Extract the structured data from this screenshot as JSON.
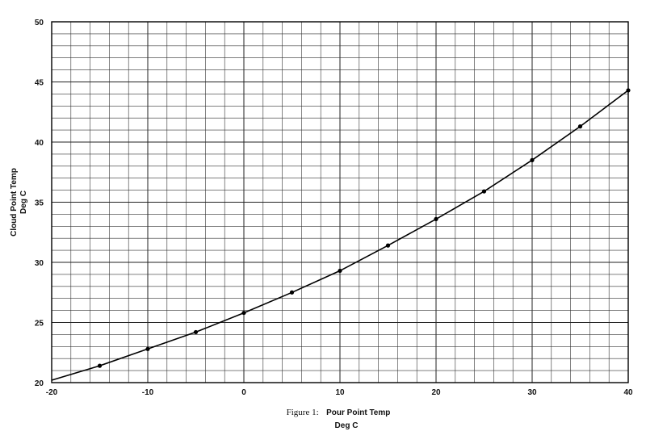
{
  "chart_data": {
    "type": "line",
    "title": "",
    "caption_prefix": "Figure 1:",
    "xlabel_line1": "Pour Point Temp",
    "xlabel_line2": "Deg C",
    "ylabel_line1": "Cloud Point Temp",
    "ylabel_line2": "Deg C",
    "xlim": [
      -20,
      40
    ],
    "ylim": [
      20,
      50
    ],
    "x_ticks": [
      -20,
      -10,
      0,
      10,
      20,
      30,
      40
    ],
    "y_ticks": [
      20,
      25,
      30,
      35,
      40,
      45,
      50
    ],
    "grid": true,
    "minor_grid_x_step": 2,
    "minor_grid_y_step": 1,
    "legend": "none",
    "series": [
      {
        "x": [
          -20,
          -15,
          -10,
          -5,
          0,
          5,
          10,
          15,
          20,
          25,
          30,
          35,
          40
        ],
        "y": [
          20.2,
          21.4,
          22.8,
          24.2,
          25.8,
          27.5,
          29.3,
          31.4,
          33.6,
          35.9,
          38.5,
          41.3,
          44.3
        ]
      }
    ],
    "markers": {
      "x": [
        -15,
        -10,
        -5,
        0,
        5,
        10,
        15,
        20,
        25,
        30,
        35,
        40
      ],
      "y": [
        21.4,
        22.8,
        24.2,
        25.8,
        27.5,
        29.3,
        31.4,
        33.6,
        35.9,
        38.5,
        41.3,
        44.3
      ]
    }
  }
}
